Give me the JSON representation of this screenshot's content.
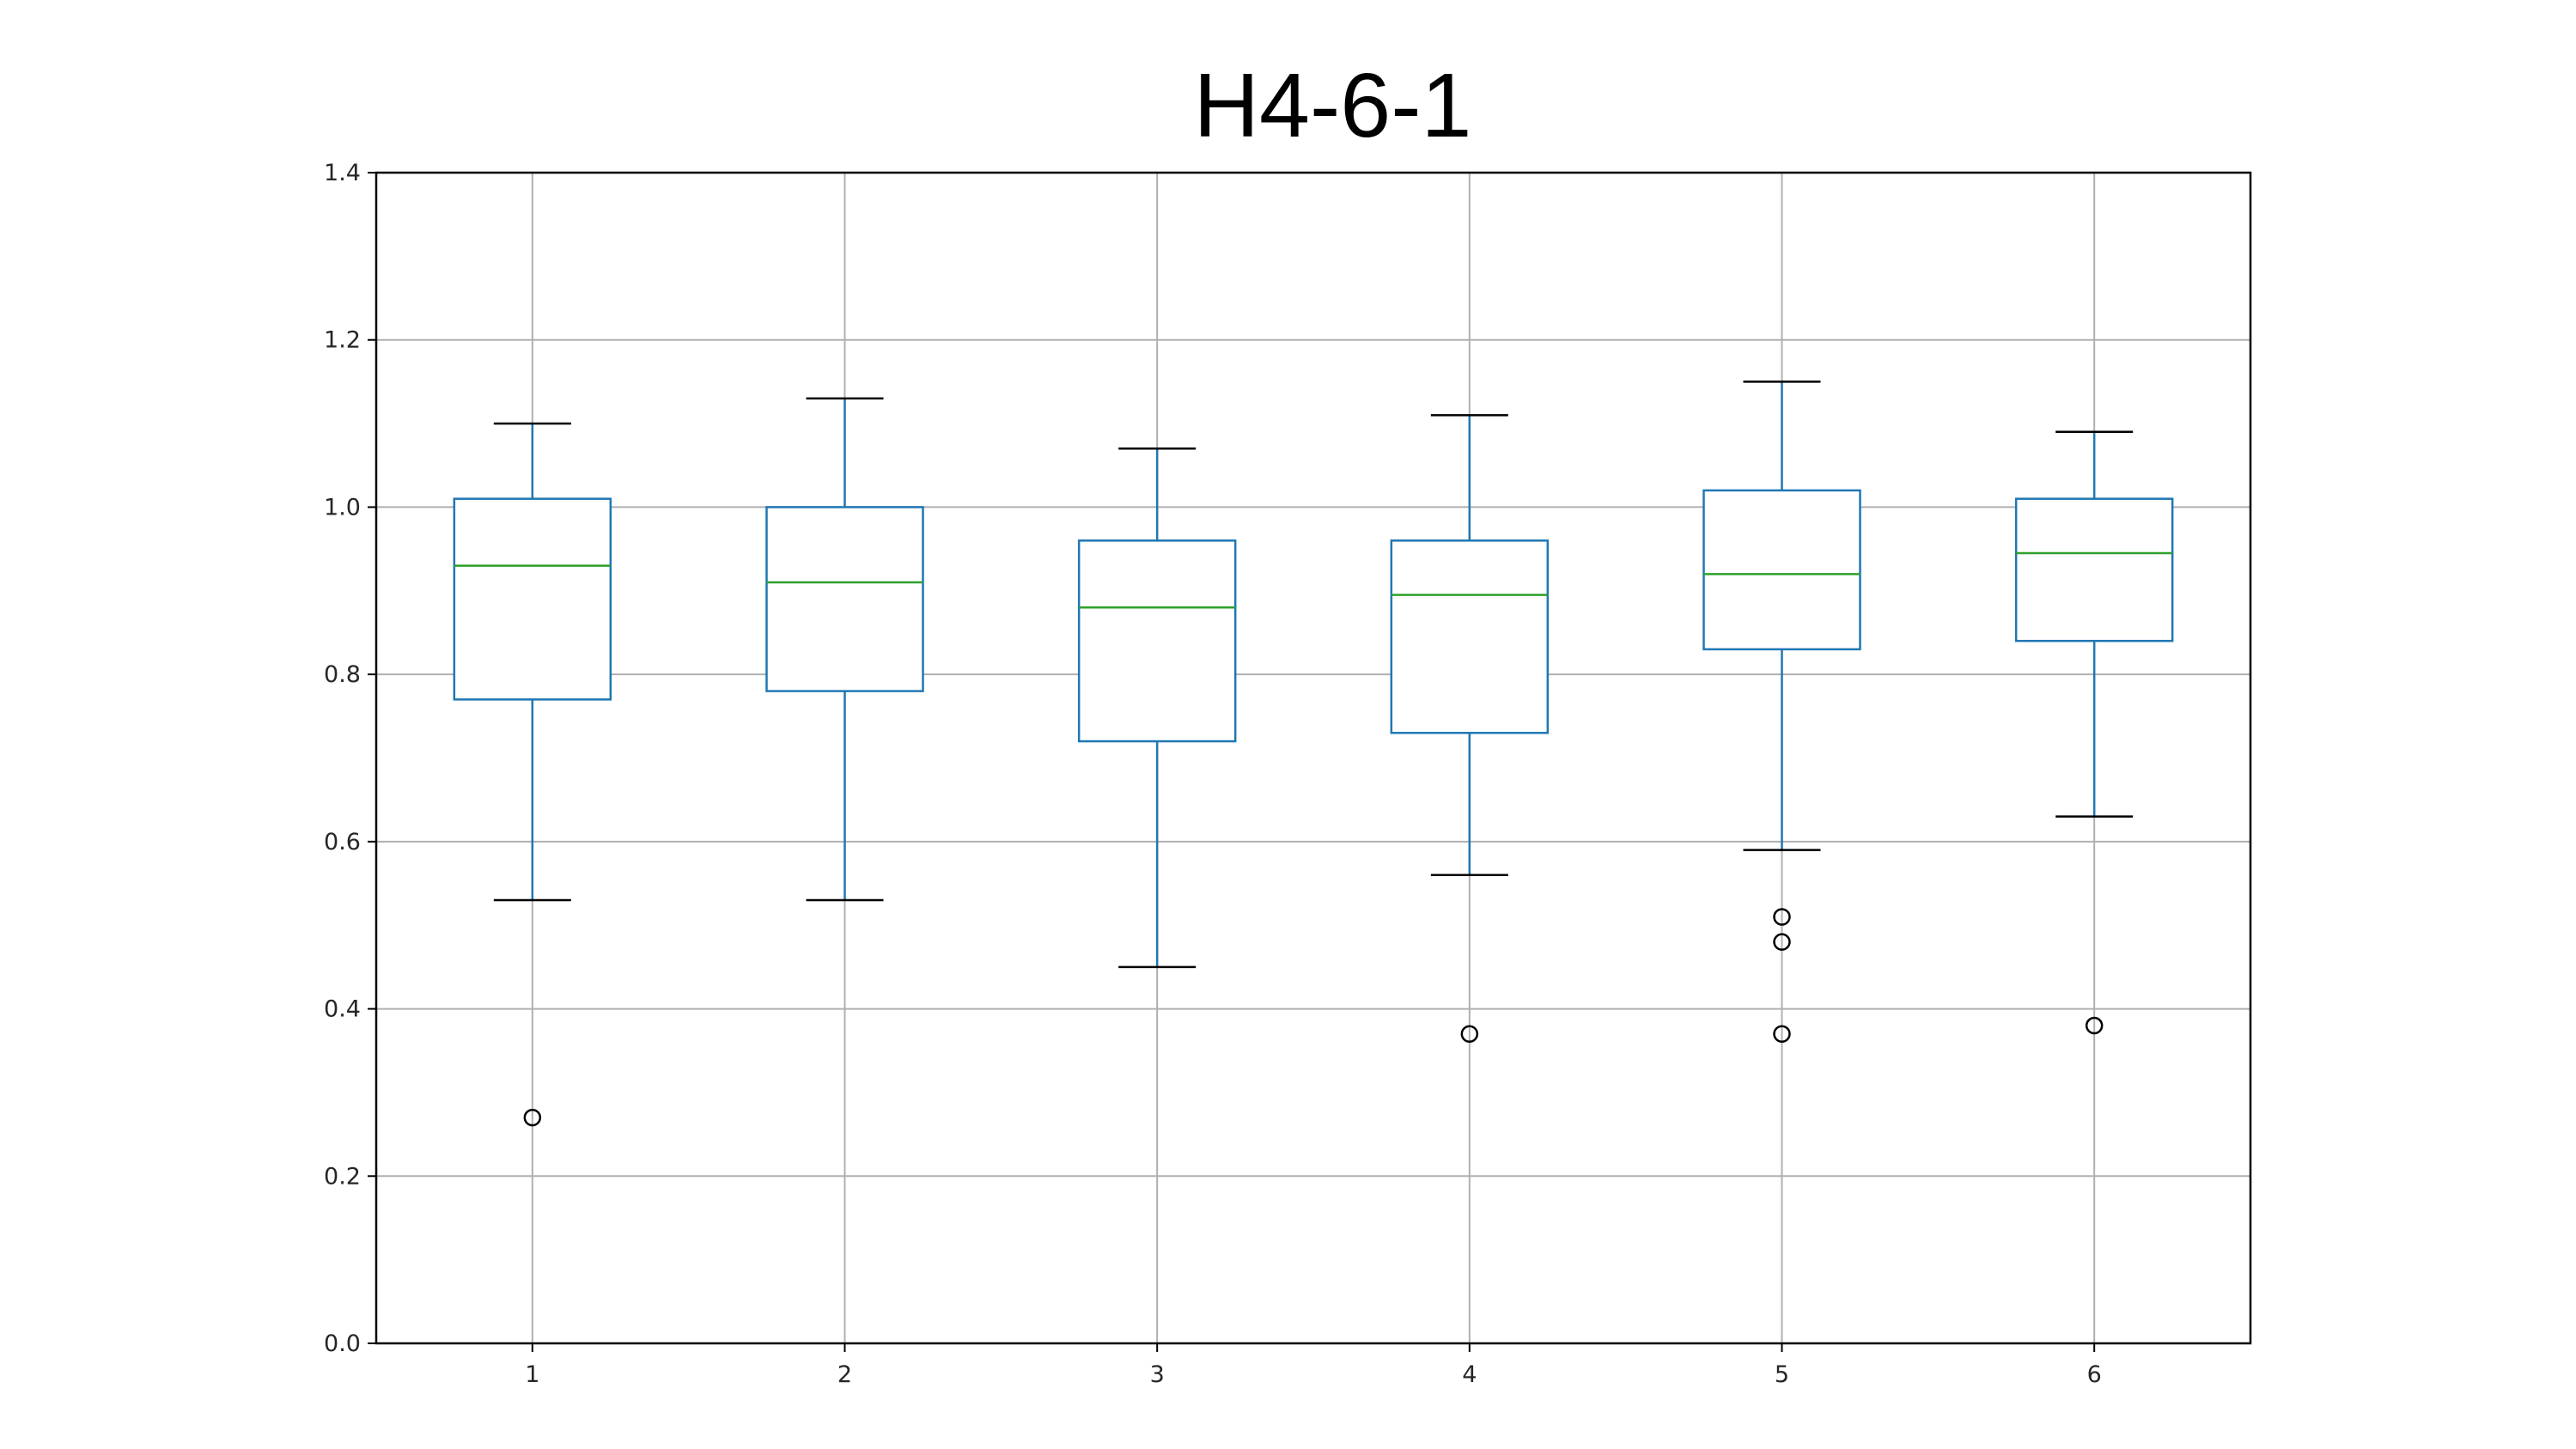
{
  "chart_data": {
    "type": "box",
    "title": "H4-6-1",
    "xlabel": "",
    "ylabel": "",
    "categories": [
      "1",
      "2",
      "3",
      "4",
      "5",
      "6"
    ],
    "ylim": [
      0.0,
      1.4
    ],
    "yticks": [
      0.0,
      0.2,
      0.4,
      0.6,
      0.8,
      1.0,
      1.2,
      1.4
    ],
    "ytick_labels": [
      "0.0",
      "0.2",
      "0.4",
      "0.6",
      "0.8",
      "1.0",
      "1.2",
      "1.4"
    ],
    "grid": true,
    "boxes": [
      {
        "category": "1",
        "whisker_low": 0.53,
        "q1": 0.77,
        "median": 0.93,
        "q3": 1.01,
        "whisker_high": 1.1,
        "outliers": [
          0.27
        ]
      },
      {
        "category": "2",
        "whisker_low": 0.53,
        "q1": 0.78,
        "median": 0.91,
        "q3": 1.0,
        "whisker_high": 1.13,
        "outliers": []
      },
      {
        "category": "3",
        "whisker_low": 0.45,
        "q1": 0.72,
        "median": 0.88,
        "q3": 0.96,
        "whisker_high": 1.07,
        "outliers": []
      },
      {
        "category": "4",
        "whisker_low": 0.56,
        "q1": 0.73,
        "median": 0.895,
        "q3": 0.96,
        "whisker_high": 1.11,
        "outliers": [
          0.37
        ]
      },
      {
        "category": "5",
        "whisker_low": 0.59,
        "q1": 0.83,
        "median": 0.92,
        "q3": 1.02,
        "whisker_high": 1.15,
        "outliers": [
          0.51,
          0.48,
          0.37
        ]
      },
      {
        "category": "6",
        "whisker_low": 0.63,
        "q1": 0.84,
        "median": 0.945,
        "q3": 1.01,
        "whisker_high": 1.09,
        "outliers": [
          0.38
        ]
      }
    ],
    "colors": {
      "box": "#1f77b4",
      "median": "#2ca02c",
      "whisker_cap": "#000000",
      "outlier": "#000000",
      "grid": "#b0b0b0",
      "axes": "#000000"
    }
  }
}
